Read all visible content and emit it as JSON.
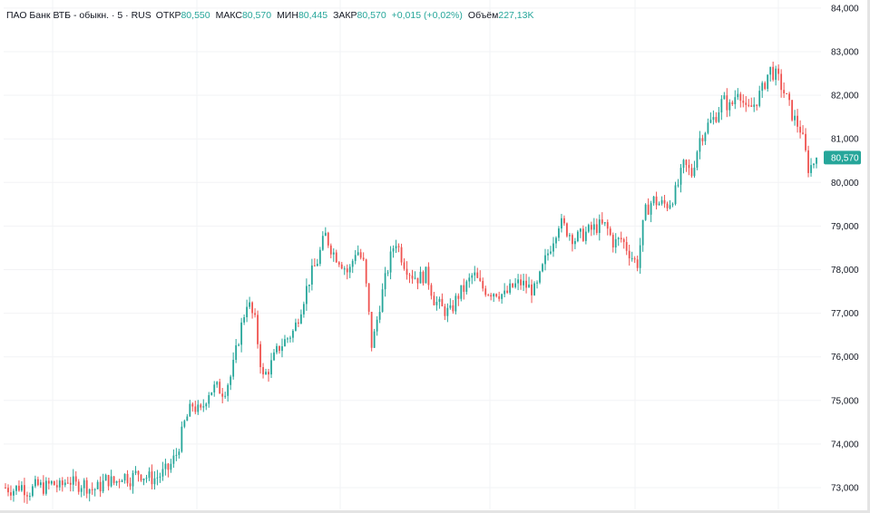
{
  "legend": {
    "symbol": "ПАО Банк ВТБ - обыкн. · 5 · RUS",
    "open_label": "ОТКР",
    "open_value": "80,550",
    "high_label": "МАКС",
    "high_value": "80,570",
    "low_label": "МИН",
    "low_value": "80,445",
    "close_label": "ЗАКР",
    "close_value": "80,570",
    "change": "+0,015 (+0,02%)",
    "volume_label": "Объём",
    "volume_value": "227,13K"
  },
  "colors": {
    "up": "#26a69a",
    "down": "#ef5350",
    "grid": "#f2f3f5",
    "price_tag": "#26a69a"
  },
  "chart_data": {
    "type": "candlestick",
    "y_ticks": [
      "73,000",
      "74,000",
      "75,000",
      "76,000",
      "77,000",
      "78,000",
      "79,000",
      "80,000",
      "81,000",
      "82,000",
      "83,000",
      "84,000"
    ],
    "ylim": [
      72.8,
      84.0
    ],
    "last_price": 80.57,
    "last_price_label": "80,570",
    "grid": true,
    "close_path": [
      73.0,
      72.95,
      73.05,
      72.9,
      73.05,
      73.0,
      73.1,
      73.0,
      73.2,
      73.05,
      73.1,
      72.95,
      73.0,
      73.2,
      73.1,
      73.3,
      73.2,
      73.35,
      73.25,
      73.2,
      73.3,
      73.45,
      73.8,
      74.5,
      74.9,
      74.7,
      75.2,
      75.3,
      75.2,
      75.6,
      76.5,
      77.3,
      76.8,
      75.5,
      75.8,
      76.2,
      76.4,
      76.6,
      77.2,
      77.8,
      78.2,
      78.8,
      78.4,
      78.2,
      77.9,
      78.5,
      78.1,
      76.2,
      77.2,
      78.0,
      78.7,
      78.2,
      77.9,
      77.8,
      77.9,
      77.3,
      77.1,
      77.0,
      77.4,
      77.6,
      77.9,
      77.6,
      77.5,
      77.5,
      77.4,
      77.6,
      77.7,
      77.6,
      77.5,
      78.1,
      78.6,
      79.1,
      78.9,
      78.7,
      78.8,
      78.9,
      79.0,
      79.0,
      78.6,
      78.7,
      78.4,
      78.1,
      79.3,
      79.6,
      79.5,
      79.5,
      79.8,
      80.4,
      80.2,
      81.0,
      81.3,
      81.5,
      81.9,
      81.7,
      82.2,
      81.6,
      81.8,
      82.1,
      82.6,
      82.4,
      82.0,
      81.5,
      81.2,
      80.3,
      80.57
    ],
    "candle_count": 300
  }
}
